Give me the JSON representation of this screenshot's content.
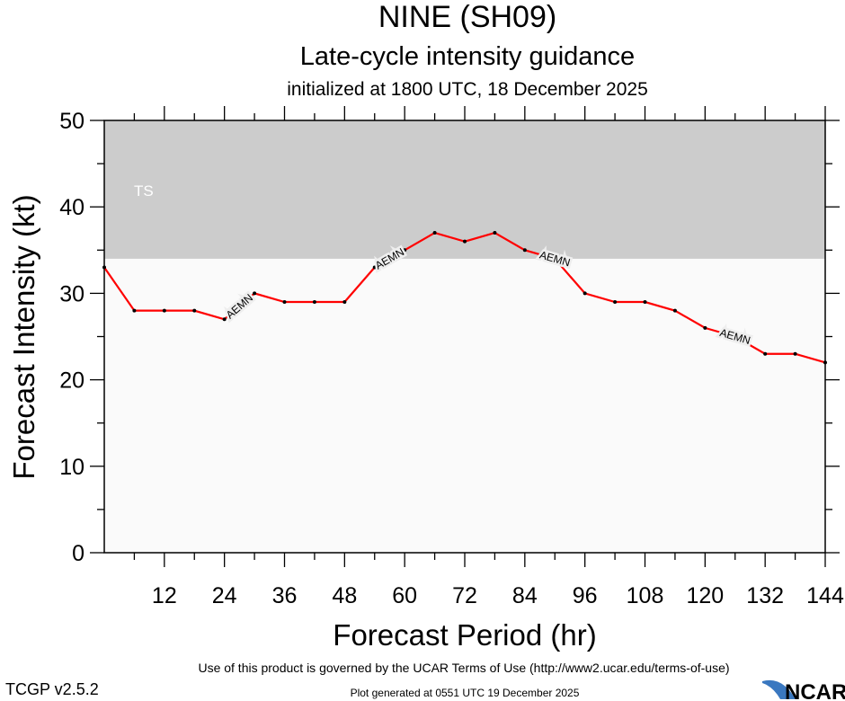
{
  "chart_data": {
    "type": "line",
    "title": "NINE (SH09)",
    "subtitle": "Late-cycle intensity guidance",
    "subtitle2": "initialized at 1800 UTC, 18 December 2025",
    "xlabel": "Forecast Period (hr)",
    "ylabel": "Forecast Intensity (kt)",
    "xlim": [
      0,
      144
    ],
    "ylim": [
      0,
      50
    ],
    "xticks": [
      12,
      24,
      36,
      48,
      60,
      72,
      84,
      96,
      108,
      120,
      132,
      144
    ],
    "yticks": [
      0,
      10,
      20,
      30,
      40,
      50
    ],
    "grid": false,
    "bands": [
      {
        "label": "TS",
        "from": 34,
        "to": 50,
        "color": "#cccccc"
      }
    ],
    "plot_background": "#fafafa",
    "series": [
      {
        "name": "AEMN",
        "color": "#ff0000",
        "x": [
          0,
          6,
          12,
          18,
          24,
          30,
          36,
          42,
          48,
          54,
          60,
          66,
          72,
          78,
          84,
          90,
          96,
          102,
          108,
          114,
          120,
          126,
          132,
          138,
          144
        ],
        "y": [
          33,
          28,
          28,
          28,
          27,
          30,
          29,
          29,
          29,
          33,
          35,
          37,
          36,
          37,
          35,
          34,
          30,
          29,
          29,
          28,
          26,
          25,
          23,
          23,
          22
        ],
        "label_at": [
          27,
          57,
          90,
          126
        ]
      }
    ]
  },
  "footer": {
    "terms": "Use of this product is governed by the UCAR Terms of Use (http://www2.ucar.edu/terms-of-use)",
    "version": "TCGP v2.5.2",
    "generated": "Plot generated at 0551 UTC   19 December 2025",
    "logo": "NCAR"
  }
}
